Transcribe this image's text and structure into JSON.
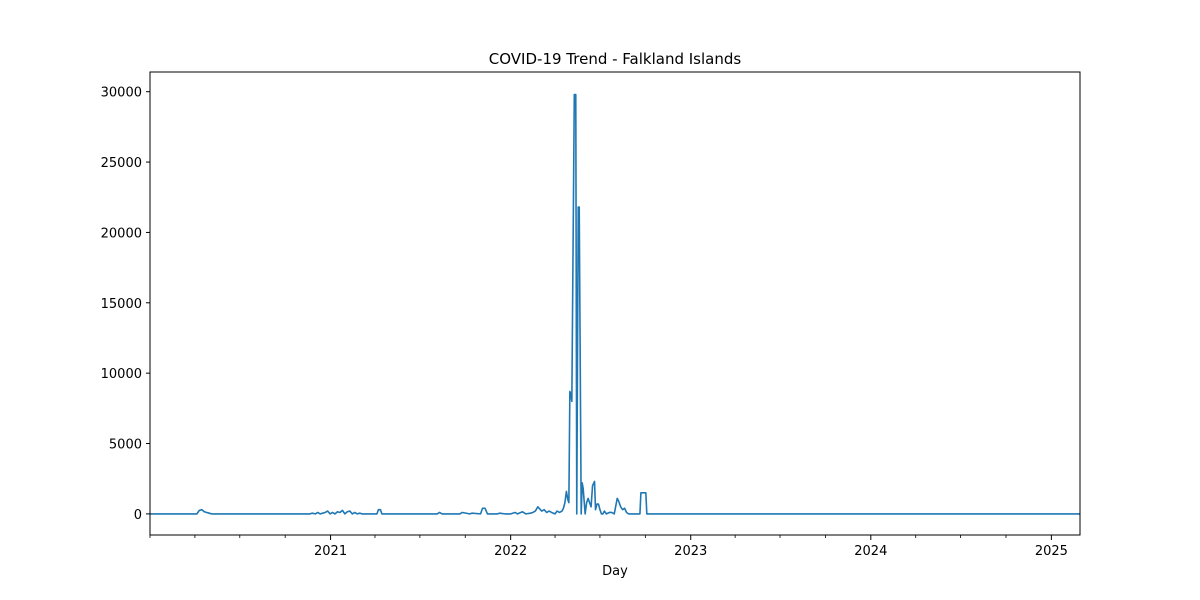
{
  "chart_data": {
    "type": "line",
    "title": "COVID-19 Trend - Falkland Islands",
    "xlabel": "Day",
    "ylabel": "",
    "xlim": [
      "2020-01-01",
      "2025-02-28"
    ],
    "ylim": [
      -1500,
      31400
    ],
    "x_ticks": [
      "2021-01-01",
      "2022-01-01",
      "2023-01-01",
      "2024-01-01",
      "2025-01-01"
    ],
    "x_tick_labels": [
      "2021",
      "2022",
      "2023",
      "2024",
      "2025"
    ],
    "y_ticks": [
      0,
      5000,
      10000,
      15000,
      20000,
      25000,
      30000
    ],
    "y_tick_labels": [
      "0",
      "5000",
      "10000",
      "15000",
      "20000",
      "25000",
      "30000"
    ],
    "grid": false,
    "color": "#1f77b4",
    "series": [
      {
        "x": [
          "2020-01-01",
          "2020-04-05",
          "2020-04-10",
          "2020-04-15",
          "2020-04-20",
          "2020-04-25",
          "2020-04-30",
          "2020-05-05",
          "2020-11-20",
          "2020-11-25",
          "2020-12-01",
          "2020-12-06",
          "2020-12-11",
          "2020-12-16",
          "2020-12-21",
          "2020-12-26",
          "2020-12-31",
          "2021-01-05",
          "2021-01-10",
          "2021-01-15",
          "2021-01-20",
          "2021-01-25",
          "2021-01-30",
          "2021-02-04",
          "2021-02-09",
          "2021-02-14",
          "2021-02-19",
          "2021-02-24",
          "2021-03-01",
          "2021-03-06",
          "2021-03-11",
          "2021-04-05",
          "2021-04-08",
          "2021-04-12",
          "2021-04-15",
          "2021-08-05",
          "2021-08-10",
          "2021-08-15",
          "2021-09-20",
          "2021-09-25",
          "2021-10-10",
          "2021-10-15",
          "2021-11-01",
          "2021-11-05",
          "2021-11-10",
          "2021-11-15",
          "2021-12-05",
          "2021-12-10",
          "2021-12-20",
          "2022-01-01",
          "2022-01-10",
          "2022-01-15",
          "2022-01-25",
          "2022-02-01",
          "2022-02-10",
          "2022-02-15",
          "2022-02-20",
          "2022-02-25",
          "2022-03-05",
          "2022-03-10",
          "2022-03-15",
          "2022-03-20",
          "2022-03-25",
          "2022-04-01",
          "2022-04-05",
          "2022-04-10",
          "2022-04-15",
          "2022-04-18",
          "2022-04-21",
          "2022-04-24",
          "2022-04-27",
          "2022-04-29",
          "2022-05-01",
          "2022-05-03",
          "2022-05-05",
          "2022-05-10",
          "2022-05-13",
          "2022-05-15",
          "2022-05-18",
          "2022-05-20",
          "2022-05-24",
          "2022-05-26",
          "2022-05-28",
          "2022-06-01",
          "2022-06-04",
          "2022-06-07",
          "2022-06-10",
          "2022-06-13",
          "2022-06-16",
          "2022-06-20",
          "2022-06-22",
          "2022-06-25",
          "2022-06-28",
          "2022-07-01",
          "2022-07-04",
          "2022-07-07",
          "2022-07-10",
          "2022-07-14",
          "2022-07-20",
          "2022-07-25",
          "2022-07-30",
          "2022-08-05",
          "2022-08-08",
          "2022-08-12",
          "2022-08-16",
          "2022-08-20",
          "2022-08-24",
          "2022-08-28",
          "2022-09-01",
          "2022-09-20",
          "2022-09-22",
          "2022-10-02",
          "2022-10-04",
          "2025-02-28"
        ],
        "y": [
          0,
          0,
          250,
          300,
          150,
          100,
          50,
          0,
          0,
          50,
          0,
          100,
          0,
          50,
          100,
          200,
          0,
          100,
          0,
          150,
          100,
          250,
          0,
          150,
          200,
          0,
          100,
          0,
          50,
          0,
          0,
          0,
          300,
          300,
          0,
          0,
          100,
          0,
          0,
          100,
          0,
          50,
          0,
          400,
          400,
          0,
          0,
          50,
          0,
          0,
          100,
          0,
          150,
          0,
          50,
          100,
          200,
          500,
          200,
          300,
          100,
          200,
          100,
          0,
          200,
          100,
          200,
          400,
          800,
          1600,
          1000,
          800,
          8700,
          8500,
          8000,
          29800,
          29800,
          0,
          21800,
          21800,
          0,
          2200,
          1800,
          0,
          800,
          1100,
          800,
          500,
          2000,
          2300,
          300,
          700,
          700,
          300,
          0,
          0,
          200,
          0,
          100,
          100,
          0,
          1100,
          900,
          500,
          300,
          400,
          100,
          0,
          0,
          0,
          1500,
          1500,
          0,
          0
        ]
      }
    ]
  }
}
